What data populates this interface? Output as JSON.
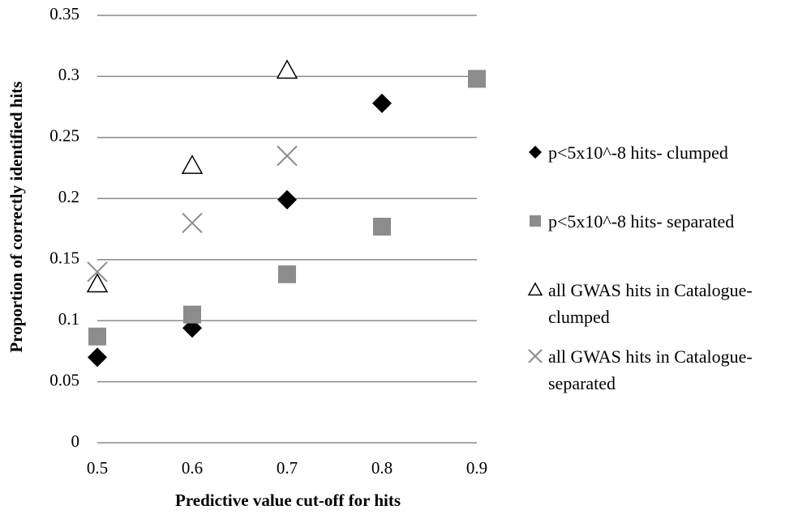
{
  "chart_data": {
    "type": "scatter",
    "xlabel": "Predictive value cut-off for hits",
    "ylabel": "Proportion of correctly identified hits",
    "x": [
      0.5,
      0.6,
      0.7,
      0.8,
      0.9
    ],
    "xlim": [
      0.5,
      0.9
    ],
    "xticks": [
      0.5,
      0.6,
      0.7,
      0.8,
      0.9
    ],
    "ylim": [
      0,
      0.35
    ],
    "yticks": [
      0,
      0.05,
      0.1,
      0.15,
      0.2,
      0.25,
      0.3,
      0.35
    ],
    "grid": true,
    "series": [
      {
        "name": "p<5x10^-8 hits- clumped",
        "color": "#000000",
        "marker": "diamond",
        "values": [
          0.07,
          0.094,
          0.199,
          0.278,
          null
        ]
      },
      {
        "name": "p<5x10^-8 hits- separated",
        "color": "#8c8c8c",
        "marker": "square",
        "values": [
          0.087,
          0.105,
          0.138,
          0.177,
          0.298
        ]
      },
      {
        "name": "all GWAS hits in Catalogue- clumped",
        "color": "#000000",
        "marker": "triangle",
        "values": [
          0.13,
          0.227,
          0.305,
          null,
          null
        ]
      },
      {
        "name": "all GWAS hits in Catalogue- separated",
        "color": "#8c8c8c",
        "marker": "x",
        "values": [
          0.14,
          0.18,
          0.235,
          null,
          null
        ]
      }
    ]
  }
}
